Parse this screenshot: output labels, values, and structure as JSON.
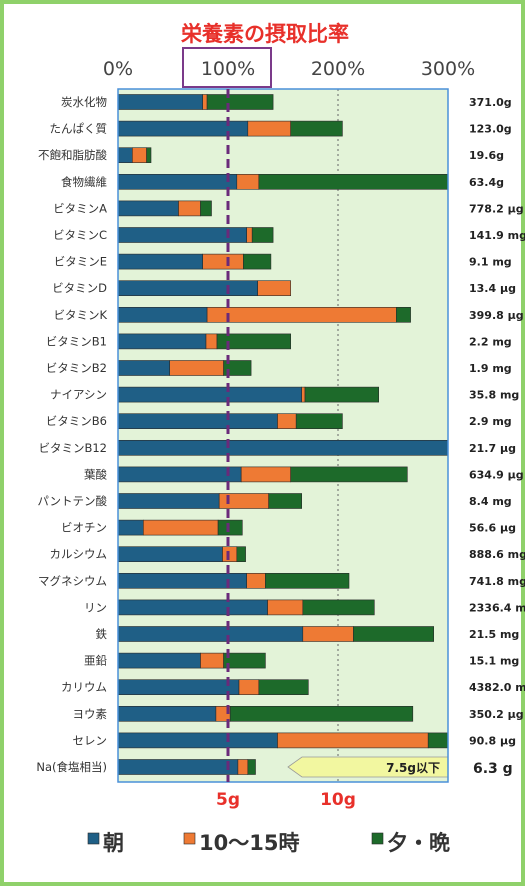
{
  "chart_data": {
    "type": "bar",
    "stacked": true,
    "orientation": "horizontal",
    "title": "栄養素の摂取比率",
    "x_axis": {
      "ticks": [
        {
          "value": 0,
          "label": "0%"
        },
        {
          "value": 100,
          "label": "100%"
        },
        {
          "value": 200,
          "label": "200%"
        },
        {
          "value": 300,
          "label": "300%"
        }
      ],
      "xlim": [
        0,
        300
      ],
      "reference_line": 100,
      "grid": "dotted vertical lines at 200% and 300%"
    },
    "legend": {
      "placement": "bottom",
      "items": [
        {
          "label": "朝",
          "color": "#1f5f86"
        },
        {
          "label": "10～15時",
          "color": "#ee7a34"
        },
        {
          "label": "夕・晩",
          "color": "#1d6a2a"
        }
      ]
    },
    "categories": [
      "炭水化物",
      "たんぱく質",
      "不飽和脂肪酸",
      "食物繊維",
      "ビタミンA",
      "ビタミンC",
      "ビタミンE",
      "ビタミンD",
      "ビタミンK",
      "ビタミンB1",
      "ビタミンB2",
      "ナイアシン",
      "ビタミンB6",
      "ビタミンB12",
      "葉酸",
      "パントテン酸",
      "ビオチン",
      "カルシウム",
      "マグネシウム",
      "リン",
      "鉄",
      "亜鉛",
      "カリウム",
      "ヨウ素",
      "セレン"
    ],
    "totals_text": [
      "371.0g",
      "123.0g",
      "19.6g",
      "63.4g",
      "778.2 μg",
      "141.9 mg",
      "9.1 mg",
      "13.4 μg",
      "399.8 μg",
      "2.2 mg",
      "1.9 mg",
      "35.8 mg",
      "2.9 mg",
      "21.7 μg",
      "634.9 μg",
      "8.4 mg",
      "56.6 μg",
      "888.6 mg",
      "741.8 mg",
      "2336.4 mg",
      "21.5 mg",
      "15.1 mg",
      "4382.0 mg",
      "350.2 μg",
      "90.8 μg"
    ],
    "series": [
      {
        "name": "朝",
        "values": [
          77,
          118,
          13,
          108,
          55,
          117,
          77,
          127,
          81,
          80,
          47,
          167,
          145,
          300,
          112,
          92,
          23,
          95,
          117,
          136,
          168,
          75,
          110,
          89,
          145
        ]
      },
      {
        "name": "10～15時",
        "values": [
          4,
          39,
          13,
          20,
          20,
          5,
          37,
          30,
          172,
          10,
          49,
          3,
          17,
          0,
          45,
          45,
          68,
          13,
          17,
          32,
          46,
          21,
          18,
          13,
          137
        ]
      },
      {
        "name": "夕・晩",
        "values": [
          60,
          47,
          4,
          172,
          10,
          19,
          25,
          0,
          13,
          67,
          25,
          67,
          42,
          0,
          106,
          30,
          22,
          8,
          76,
          65,
          73,
          38,
          45,
          166,
          19
        ]
      }
    ],
    "sodium": {
      "label": "Na(食塩相当)",
      "values": [
        109,
        9,
        7
      ],
      "value_text": "6.3 g",
      "target_text": "7.5g以下",
      "scale_marks": [
        {
          "value": 5,
          "label": "5g"
        },
        {
          "value": 10,
          "label": "10g"
        }
      ]
    }
  }
}
